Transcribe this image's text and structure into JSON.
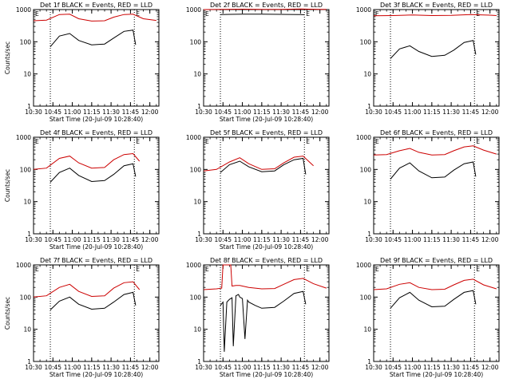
{
  "chart_data": [
    {
      "type": "line",
      "title": "Det 1f BLACK = Events, RED = LLD",
      "xlabel": "Start Time (20-Jul-09 10:28:40)",
      "ylabel": "Counts/sec",
      "xlim": [
        "10:30",
        "12:07"
      ],
      "ylim": [
        1,
        1000
      ],
      "yscale": "log",
      "x_ticks": [
        "10:30",
        "10:45",
        "11:00",
        "11:15",
        "11:30",
        "11:45",
        "12:00"
      ],
      "y_ticks": [
        "1",
        "10",
        "100",
        "1000"
      ],
      "markers": [
        {
          "time": "10:43",
          "label": ""
        },
        {
          "time": "11:48",
          "label": "E"
        }
      ],
      "series": [
        {
          "color": "#000000",
          "x": [
            "10:43",
            "10:50",
            "10:58",
            "11:05",
            "11:15",
            "11:25",
            "11:32",
            "11:40",
            "11:47",
            "11:49"
          ],
          "y": [
            70,
            150,
            180,
            110,
            80,
            85,
            130,
            210,
            230,
            80
          ]
        },
        {
          "color": "#cc0000",
          "x": [
            "10:30",
            "10:40",
            "10:50",
            "10:58",
            "11:05",
            "11:15",
            "11:25",
            "11:32",
            "11:40",
            "11:47",
            "11:55",
            "12:05"
          ],
          "y": [
            450,
            470,
            700,
            720,
            520,
            440,
            450,
            580,
            700,
            720,
            520,
            460
          ]
        }
      ]
    },
    {
      "type": "line",
      "title": "Det 2f BLACK = Events, RED = LLD",
      "xlabel": "Start Time (20-Jul-09 10:28:40)",
      "ylabel": "",
      "xlim": [
        "10:30",
        "12:07"
      ],
      "ylim": [
        1,
        1000
      ],
      "yscale": "log",
      "x_ticks": [
        "10:30",
        "10:45",
        "11:00",
        "11:15",
        "11:30",
        "11:45",
        "12:00"
      ],
      "y_ticks": [
        "1",
        "10",
        "100",
        "1000"
      ],
      "markers": [
        {
          "time": "10:43",
          "label": ""
        },
        {
          "time": "11:48",
          "label": "E"
        }
      ],
      "series": [
        {
          "color": "#000000",
          "x": [
            "10:43",
            "10:50",
            "11:00",
            "11:15",
            "11:30",
            "11:45",
            "11:48"
          ],
          "y": [
            700,
            710,
            720,
            720,
            710,
            700,
            690
          ]
        },
        {
          "color": "#cc0000",
          "x": [
            "10:30",
            "10:45",
            "11:00",
            "11:15",
            "11:30",
            "11:45",
            "12:00",
            "12:05"
          ],
          "y": [
            1000,
            1020,
            1030,
            1020,
            1010,
            1040,
            1020,
            1010
          ]
        }
      ]
    },
    {
      "type": "line",
      "title": "Det 3f BLACK = Events, RED = LLD",
      "xlabel": "",
      "ylabel": "",
      "xlim": [
        "10:30",
        "12:07"
      ],
      "ylim": [
        1,
        1000
      ],
      "yscale": "log",
      "x_ticks": [
        "10:30",
        "10:45",
        "11:00",
        "11:15",
        "11:30",
        "11:45",
        "12:00"
      ],
      "y_ticks": [
        "1",
        "10",
        "100",
        "1000"
      ],
      "markers": [
        {
          "time": "10:43",
          "label": ""
        },
        {
          "time": "11:48",
          "label": "E"
        }
      ],
      "series": [
        {
          "color": "#000000",
          "x": [
            "10:43",
            "10:50",
            "10:58",
            "11:05",
            "11:15",
            "11:25",
            "11:32",
            "11:40",
            "11:47",
            "11:49"
          ],
          "y": [
            30,
            60,
            75,
            50,
            35,
            38,
            55,
            95,
            110,
            40
          ]
        },
        {
          "color": "#cc0000",
          "x": [
            "10:30",
            "10:45",
            "11:00",
            "11:15",
            "11:30",
            "11:45",
            "12:00",
            "12:05"
          ],
          "y": [
            640,
            650,
            680,
            650,
            660,
            700,
            670,
            650
          ]
        }
      ]
    },
    {
      "type": "line",
      "title": "Det 4f BLACK = Events, RED = LLD",
      "xlabel": "Start Time (20-Jul-09 10:28:40)",
      "ylabel": "Counts/sec",
      "xlim": [
        "10:30",
        "12:07"
      ],
      "ylim": [
        1,
        1000
      ],
      "yscale": "log",
      "x_ticks": [
        "10:30",
        "10:45",
        "11:00",
        "11:15",
        "11:30",
        "11:45",
        "12:00"
      ],
      "y_ticks": [
        "1",
        "10",
        "100",
        "1000"
      ],
      "markers": [
        {
          "time": "10:43",
          "label": ""
        },
        {
          "time": "11:48",
          "label": "E"
        }
      ],
      "series": [
        {
          "color": "#000000",
          "x": [
            "10:43",
            "10:50",
            "10:58",
            "11:05",
            "11:15",
            "11:25",
            "11:32",
            "11:40",
            "11:47",
            "11:49"
          ],
          "y": [
            40,
            80,
            110,
            65,
            42,
            45,
            70,
            130,
            150,
            60
          ]
        },
        {
          "color": "#cc0000",
          "x": [
            "10:30",
            "10:40",
            "10:50",
            "10:58",
            "11:05",
            "11:15",
            "11:25",
            "11:32",
            "11:40",
            "11:47",
            "11:52"
          ],
          "y": [
            100,
            110,
            220,
            260,
            160,
            110,
            115,
            200,
            290,
            310,
            180
          ]
        }
      ]
    },
    {
      "type": "line",
      "title": "Det 5f BLACK = Events, RED = LLD",
      "xlabel": "Start Time (20-Jul-09 10:28:40)",
      "ylabel": "",
      "xlim": [
        "10:30",
        "12:07"
      ],
      "ylim": [
        1,
        1000
      ],
      "yscale": "log",
      "x_ticks": [
        "10:30",
        "10:45",
        "11:00",
        "11:15",
        "11:30",
        "11:45",
        "12:00"
      ],
      "y_ticks": [
        "1",
        "10",
        "100",
        "1000"
      ],
      "markers": [
        {
          "time": "10:43",
          "label": ""
        },
        {
          "time": "11:48",
          "label": "E"
        }
      ],
      "series": [
        {
          "color": "#000000",
          "x": [
            "10:43",
            "10:50",
            "10:58",
            "11:05",
            "11:15",
            "11:25",
            "11:32",
            "11:40",
            "11:47",
            "11:49"
          ],
          "y": [
            80,
            140,
            180,
            120,
            85,
            90,
            140,
            200,
            220,
            70
          ]
        },
        {
          "color": "#cc0000",
          "x": [
            "10:30",
            "10:40",
            "10:50",
            "10:58",
            "11:05",
            "11:15",
            "11:25",
            "11:32",
            "11:40",
            "11:47",
            "11:55"
          ],
          "y": [
            90,
            100,
            170,
            230,
            150,
            100,
            105,
            160,
            240,
            260,
            130
          ]
        }
      ]
    },
    {
      "type": "line",
      "title": "Det 6f BLACK = Events, RED = LLD",
      "xlabel": "",
      "ylabel": "",
      "xlim": [
        "10:30",
        "12:07"
      ],
      "ylim": [
        1,
        1000
      ],
      "yscale": "log",
      "x_ticks": [
        "10:30",
        "10:45",
        "11:00",
        "11:15",
        "11:30",
        "11:45",
        "12:00"
      ],
      "y_ticks": [
        "1",
        "10",
        "100",
        "1000"
      ],
      "markers": [
        {
          "time": "10:43",
          "label": ""
        },
        {
          "time": "11:48",
          "label": "E"
        }
      ],
      "series": [
        {
          "color": "#000000",
          "x": [
            "10:43",
            "10:50",
            "10:58",
            "11:05",
            "11:15",
            "11:25",
            "11:32",
            "11:40",
            "11:47",
            "11:49"
          ],
          "y": [
            50,
            110,
            160,
            90,
            55,
            58,
            95,
            150,
            170,
            60
          ]
        },
        {
          "color": "#cc0000",
          "x": [
            "10:30",
            "10:40",
            "10:50",
            "10:58",
            "11:05",
            "11:15",
            "11:25",
            "11:32",
            "11:40",
            "11:47",
            "11:55",
            "12:05"
          ],
          "y": [
            280,
            290,
            380,
            450,
            340,
            280,
            290,
            380,
            500,
            540,
            400,
            300
          ]
        }
      ]
    },
    {
      "type": "line",
      "title": "Det 7f BLACK = Events, RED = LLD",
      "xlabel": "Start Time (20-Jul-09 10:28:40)",
      "ylabel": "Counts/sec",
      "xlim": [
        "10:30",
        "12:07"
      ],
      "ylim": [
        1,
        1000
      ],
      "yscale": "log",
      "x_ticks": [
        "10:30",
        "10:45",
        "11:00",
        "11:15",
        "11:30",
        "11:45",
        "12:00"
      ],
      "y_ticks": [
        "1",
        "10",
        "100",
        "1000"
      ],
      "markers": [
        {
          "time": "10:43",
          "label": ""
        },
        {
          "time": "11:48",
          "label": "E"
        }
      ],
      "series": [
        {
          "color": "#000000",
          "x": [
            "10:43",
            "10:50",
            "10:58",
            "11:05",
            "11:15",
            "11:25",
            "11:32",
            "11:40",
            "11:47",
            "11:49"
          ],
          "y": [
            40,
            75,
            100,
            60,
            42,
            45,
            70,
            120,
            140,
            55
          ]
        },
        {
          "color": "#cc0000",
          "x": [
            "10:30",
            "10:40",
            "10:50",
            "10:58",
            "11:05",
            "11:15",
            "11:25",
            "11:32",
            "11:40",
            "11:47",
            "11:52"
          ],
          "y": [
            100,
            110,
            200,
            250,
            150,
            105,
            110,
            190,
            280,
            300,
            170
          ]
        }
      ]
    },
    {
      "type": "line",
      "title": "Det 8f BLACK = Events, RED = LLD",
      "xlabel": "Start Time (20-Jul-09 10:28:40)",
      "ylabel": "",
      "xlim": [
        "10:30",
        "12:07"
      ],
      "ylim": [
        1,
        1000
      ],
      "yscale": "log",
      "x_ticks": [
        "10:30",
        "10:45",
        "11:00",
        "11:15",
        "11:30",
        "11:45",
        "12:00"
      ],
      "y_ticks": [
        "1",
        "10",
        "100",
        "1000"
      ],
      "markers": [
        {
          "time": "10:43",
          "label": ""
        },
        {
          "time": "11:48",
          "label": "E"
        }
      ],
      "series": [
        {
          "color": "#000000",
          "x": [
            "10:43",
            "10:45",
            "10:46",
            "10:48",
            "10:50",
            "10:52",
            "10:53",
            "10:55",
            "10:57",
            "10:58",
            "11:00",
            "11:02",
            "11:04",
            "11:05",
            "11:10",
            "11:15",
            "11:25",
            "11:32",
            "11:40",
            "11:47",
            "11:49"
          ],
          "y": [
            55,
            70,
            2,
            70,
            85,
            95,
            3,
            110,
            120,
            100,
            90,
            5,
            80,
            70,
            55,
            45,
            48,
            75,
            130,
            150,
            60
          ]
        },
        {
          "color": "#cc0000",
          "x": [
            "10:30",
            "10:40",
            "10:44",
            "10:45",
            "10:46",
            "10:48",
            "10:50",
            "10:51",
            "10:52",
            "10:55",
            "10:58",
            "11:05",
            "11:15",
            "11:25",
            "11:32",
            "11:40",
            "11:47",
            "11:55",
            "12:05"
          ],
          "y": [
            170,
            180,
            190,
            1000,
            1000,
            1000,
            1000,
            1000,
            220,
            230,
            230,
            200,
            180,
            185,
            250,
            350,
            380,
            260,
            190
          ]
        }
      ]
    },
    {
      "type": "line",
      "title": "Det 9f BLACK = Events, RED = LLD",
      "xlabel": "Start Time (20-Jul-09 10:28:40)",
      "ylabel": "",
      "xlim": [
        "10:30",
        "12:07"
      ],
      "ylim": [
        1,
        1000
      ],
      "yscale": "log",
      "x_ticks": [
        "10:30",
        "10:45",
        "11:00",
        "11:15",
        "11:30",
        "11:45",
        "12:00"
      ],
      "y_ticks": [
        "1",
        "10",
        "100",
        "1000"
      ],
      "markers": [
        {
          "time": "10:43",
          "label": ""
        },
        {
          "time": "11:48",
          "label": "E"
        }
      ],
      "series": [
        {
          "color": "#000000",
          "x": [
            "10:43",
            "10:50",
            "10:58",
            "11:05",
            "11:15",
            "11:25",
            "11:32",
            "11:40",
            "11:47",
            "11:49"
          ],
          "y": [
            45,
            95,
            140,
            80,
            50,
            52,
            85,
            140,
            160,
            60
          ]
        },
        {
          "color": "#cc0000",
          "x": [
            "10:30",
            "10:40",
            "10:50",
            "10:58",
            "11:05",
            "11:15",
            "11:25",
            "11:32",
            "11:40",
            "11:47",
            "11:55",
            "12:05"
          ],
          "y": [
            170,
            180,
            250,
            280,
            200,
            170,
            175,
            240,
            330,
            360,
            240,
            180
          ]
        }
      ]
    }
  ]
}
